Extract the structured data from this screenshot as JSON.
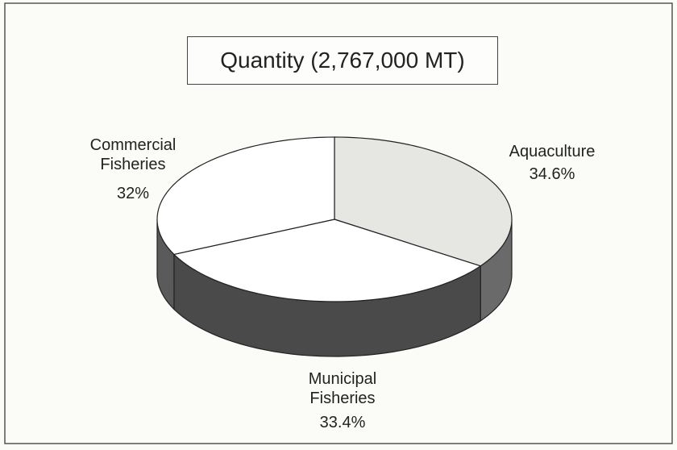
{
  "chart_data": {
    "type": "pie",
    "title": "Quantity (2,767,000 MT)",
    "categories": [
      "Aquaculture",
      "Municipal Fisheries",
      "Commercial Fisheries"
    ],
    "values": [
      34.6,
      33.4,
      32
    ],
    "value_labels": [
      "34.6%",
      "33.4%",
      "32%"
    ],
    "colors": [
      "#e6e6e2",
      "#ffffff",
      "#ffffff"
    ],
    "side_colors": [
      "#6a6a6a",
      "#4a4a4a",
      "#5a5a5a"
    ]
  }
}
